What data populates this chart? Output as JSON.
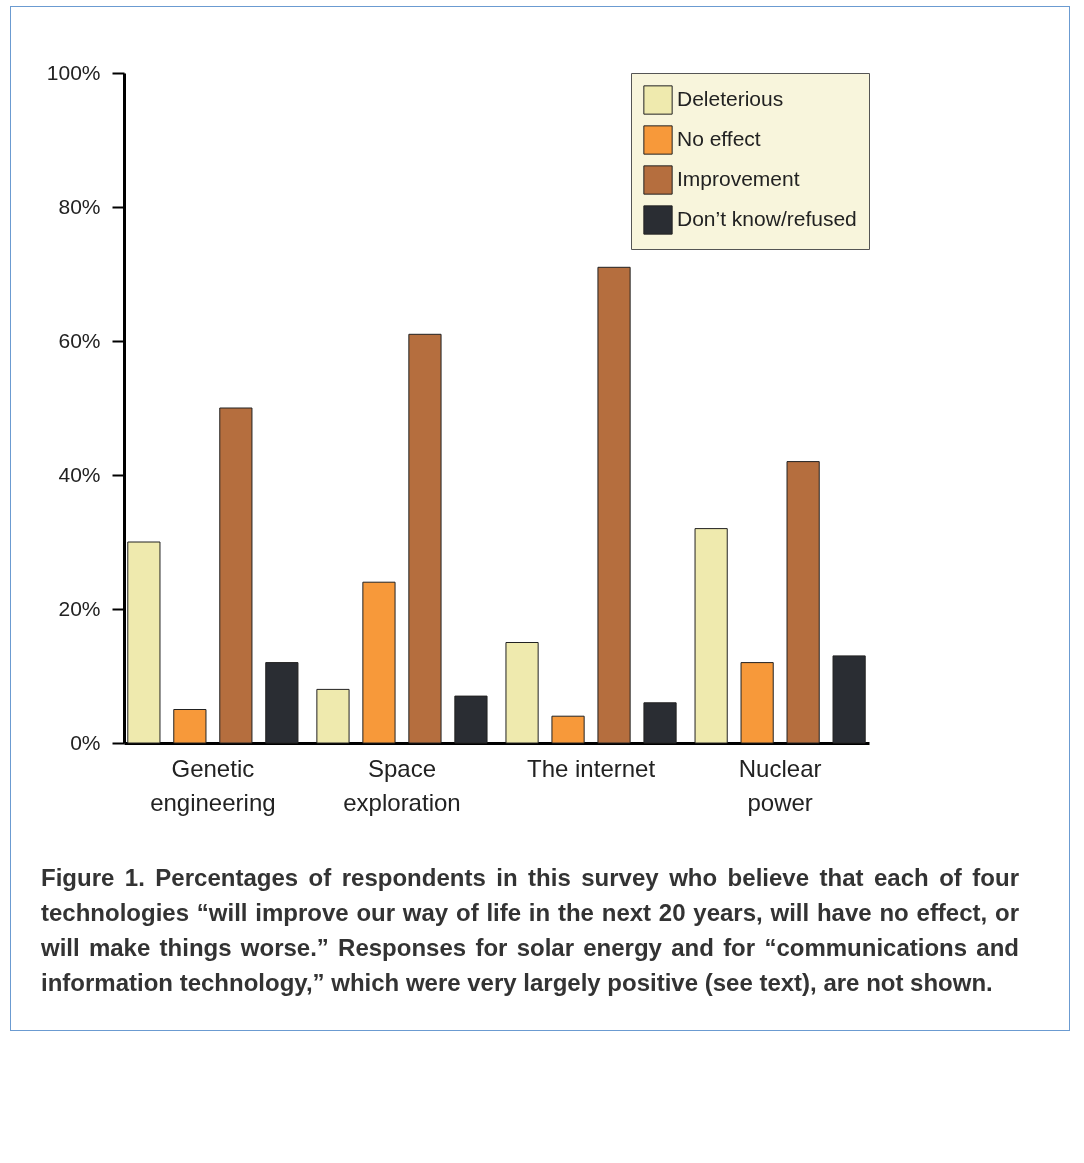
{
  "chart_data": {
    "type": "bar",
    "categories": [
      "Genetic engineering",
      "Space exploration",
      "The internet",
      "Nuclear power"
    ],
    "series": [
      {
        "name": "Deleterious",
        "color": "#efeaae",
        "values": [
          30,
          8,
          15,
          32
        ]
      },
      {
        "name": "No effect",
        "color": "#f7993a",
        "values": [
          5,
          24,
          4,
          12
        ]
      },
      {
        "name": "Improvement",
        "color": "#b56e3e",
        "values": [
          50,
          61,
          71,
          42
        ]
      },
      {
        "name": "Don’t know/refused",
        "color": "#2a2d33",
        "values": [
          12,
          7,
          6,
          13
        ]
      }
    ],
    "ylim": [
      0,
      100
    ],
    "yticks": [
      {
        "value": 0,
        "label": "0%"
      },
      {
        "value": 20,
        "label": "20%"
      },
      {
        "value": 40,
        "label": "40%"
      },
      {
        "value": 60,
        "label": "60%"
      },
      {
        "value": 80,
        "label": "80%"
      },
      {
        "value": 100,
        "label": "100%"
      }
    ],
    "grid": false,
    "legend": "top right",
    "annotations": [
      "Figure 1. Percentages of respondents in this survey who believe that each of four technologies “will improve our way of life in the next 20 years, will have no effect, or will make things worse.” Responses for solar energy and for “communications and information technology,” which were very largely positive (see text), are not shown."
    ]
  }
}
